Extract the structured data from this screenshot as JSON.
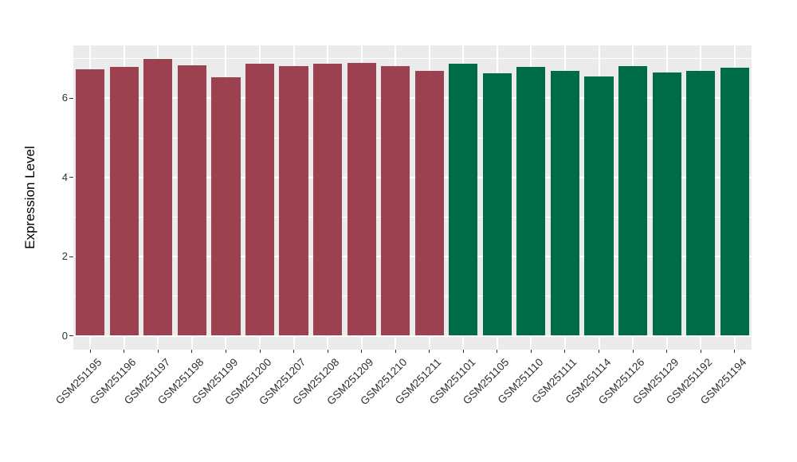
{
  "chart_data": {
    "type": "bar",
    "title": "",
    "xlabel": "",
    "ylabel": "Expression Level",
    "ylim": [
      0,
      7.33
    ],
    "yticks": [
      0,
      2,
      4,
      6
    ],
    "yticks_minor": [
      1,
      3,
      5,
      7
    ],
    "grid": "on",
    "legend_position": "none",
    "categories": [
      "GSM251195",
      "GSM251196",
      "GSM251197",
      "GSM251198",
      "GSM251199",
      "GSM251200",
      "GSM251207",
      "GSM251208",
      "GSM251209",
      "GSM251210",
      "GSM251211",
      "GSM251101",
      "GSM251105",
      "GSM251110",
      "GSM251111",
      "GSM251114",
      "GSM251126",
      "GSM251129",
      "GSM251192",
      "GSM251194"
    ],
    "values": [
      6.74,
      6.8,
      7.0,
      6.84,
      6.53,
      6.88,
      6.82,
      6.88,
      6.9,
      6.82,
      6.69,
      6.88,
      6.63,
      6.79,
      6.7,
      6.55,
      6.82,
      6.64,
      6.69,
      6.78
    ],
    "groups": [
      0,
      0,
      0,
      0,
      0,
      0,
      0,
      0,
      0,
      0,
      0,
      1,
      1,
      1,
      1,
      1,
      1,
      1,
      1,
      1
    ],
    "group_colors": [
      "#9C4150",
      "#006B47"
    ],
    "style": {
      "panel_bg": "#EBEBEB",
      "grid_color": "#FFFFFF",
      "tick_color": "#333333",
      "tick_label_color": "#303030",
      "axis_title_color": "#000000"
    }
  }
}
